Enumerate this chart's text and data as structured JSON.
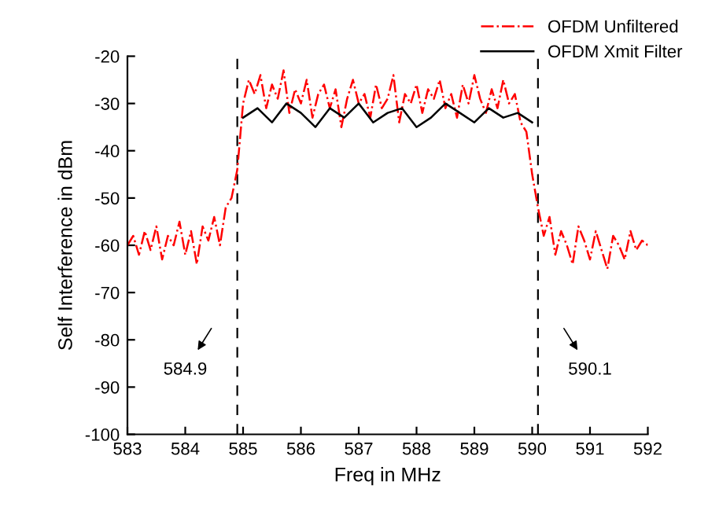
{
  "chart_data": {
    "type": "line",
    "xlabel": "Freq in MHz",
    "ylabel": "Self Interference in dBm",
    "xlim": [
      583,
      592
    ],
    "ylim": [
      -100,
      -20
    ],
    "xticks": [
      583,
      584,
      585,
      586,
      587,
      588,
      589,
      590,
      591,
      592
    ],
    "yticks": [
      -100,
      -90,
      -80,
      -70,
      -60,
      -50,
      -40,
      -30,
      -20
    ],
    "grid": false,
    "legend": "top right",
    "marker": "none",
    "series": [
      {
        "name": "OFDM Unfiltered",
        "color": "#ff0000",
        "line_style": "dashed",
        "x": [
          583.0,
          583.1,
          583.2,
          583.3,
          583.4,
          583.5,
          583.6,
          583.7,
          583.8,
          583.9,
          584.0,
          584.1,
          584.2,
          584.3,
          584.4,
          584.5,
          584.6,
          584.7,
          584.8,
          584.9,
          585.0,
          585.1,
          585.2,
          585.3,
          585.4,
          585.5,
          585.6,
          585.7,
          585.8,
          585.9,
          586.0,
          586.1,
          586.2,
          586.3,
          586.4,
          586.5,
          586.6,
          586.7,
          586.8,
          586.9,
          587.0,
          587.1,
          587.2,
          587.3,
          587.4,
          587.5,
          587.6,
          587.7,
          587.8,
          587.9,
          588.0,
          588.1,
          588.2,
          588.3,
          588.4,
          588.5,
          588.6,
          588.7,
          588.8,
          588.9,
          589.0,
          589.1,
          589.2,
          589.3,
          589.4,
          589.5,
          589.6,
          589.7,
          589.8,
          589.9,
          590.0,
          590.1,
          590.2,
          590.3,
          590.4,
          590.5,
          590.6,
          590.7,
          590.8,
          590.9,
          591.0,
          591.1,
          591.2,
          591.3,
          591.4,
          591.5,
          591.6,
          591.7,
          591.8,
          591.9,
          592.0
        ],
        "values": [
          -60,
          -58,
          -62,
          -57,
          -61,
          -56,
          -63,
          -58,
          -60,
          -55,
          -62,
          -57,
          -64,
          -56,
          -59,
          -54,
          -60,
          -52,
          -50,
          -44,
          -30,
          -25,
          -28,
          -24,
          -31,
          -26,
          -29,
          -23,
          -32,
          -27,
          -30,
          -25,
          -33,
          -28,
          -26,
          -31,
          -27,
          -35,
          -29,
          -25,
          -30,
          -28,
          -33,
          -26,
          -31,
          -29,
          -24,
          -34,
          -28,
          -30,
          -26,
          -32,
          -27,
          -29,
          -25,
          -31,
          -28,
          -33,
          -26,
          -30,
          -24,
          -29,
          -32,
          -27,
          -31,
          -25,
          -30,
          -28,
          -34,
          -36,
          -45,
          -52,
          -58,
          -54,
          -62,
          -57,
          -60,
          -64,
          -56,
          -59,
          -63,
          -57,
          -61,
          -65,
          -58,
          -60,
          -63,
          -57,
          -61,
          -59,
          -60
        ]
      },
      {
        "name": "OFDM Xmit Filter",
        "color": "#000000",
        "line_style": "solid",
        "x": [
          585.0,
          585.25,
          585.5,
          585.75,
          586.0,
          586.25,
          586.5,
          586.75,
          587.0,
          587.25,
          587.5,
          587.75,
          588.0,
          588.25,
          588.5,
          588.75,
          589.0,
          589.25,
          589.5,
          589.75,
          590.0
        ],
        "values": [
          -33,
          -31,
          -34,
          -30,
          -32,
          -35,
          -31,
          -33,
          -30,
          -34,
          -32,
          -31,
          -35,
          -33,
          -30,
          -32,
          -34,
          -31,
          -33,
          -32,
          -34
        ]
      }
    ],
    "ref_lines": [
      {
        "axis": "x",
        "value": 584.9,
        "label": "584.9",
        "color": "#000000",
        "line_style": "dashed"
      },
      {
        "axis": "x",
        "value": 590.1,
        "label": "590.1",
        "color": "#000000",
        "line_style": "dashed"
      }
    ]
  }
}
